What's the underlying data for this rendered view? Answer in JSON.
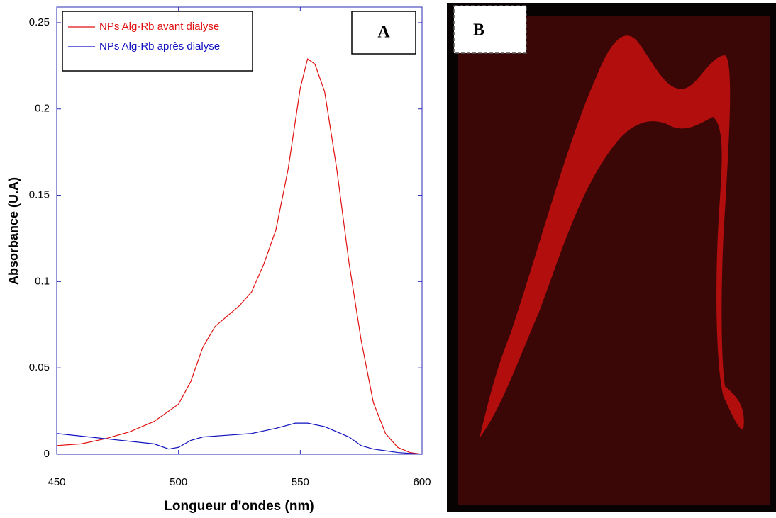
{
  "chart_data": {
    "type": "line",
    "panel_label": "A",
    "x_label": "Longueur d'ondes (nm)",
    "y_label": "Absorbance (U.A)",
    "xlim": [
      450,
      600
    ],
    "xticks": [
      450,
      500,
      550,
      600
    ],
    "ylim": [
      0,
      0.259
    ],
    "yticks": [
      0,
      0.05,
      0.1,
      0.15,
      0.2,
      0.25
    ],
    "legend": "upper left",
    "series": [
      {
        "name": "NPs  Alg-Rb avant dialyse",
        "color": "#e01010",
        "x": [
          450,
          460,
          470,
          480,
          490,
          500,
          505,
          510,
          515,
          520,
          525,
          530,
          535,
          540,
          545,
          550,
          553,
          556,
          560,
          565,
          570,
          575,
          580,
          585,
          590,
          595,
          600
        ],
        "values": [
          0.005,
          0.006,
          0.009,
          0.013,
          0.019,
          0.029,
          0.042,
          0.062,
          0.074,
          0.08,
          0.086,
          0.094,
          0.11,
          0.13,
          0.165,
          0.212,
          0.229,
          0.226,
          0.21,
          0.165,
          0.111,
          0.066,
          0.03,
          0.012,
          0.004,
          0.001,
          0
        ]
      },
      {
        "name": "NPs Alg-Rb après dialyse",
        "color": "#1010c0",
        "x": [
          450,
          470,
          490,
          496,
          500,
          505,
          510,
          520,
          530,
          540,
          548,
          553,
          560,
          570,
          575,
          580,
          590,
          600
        ],
        "values": [
          0.012,
          0.009,
          0.006,
          0.003,
          0.004,
          0.008,
          0.01,
          0.011,
          0.012,
          0.015,
          0.018,
          0.018,
          0.016,
          0.01,
          0.005,
          0.003,
          0.001,
          0
        ]
      }
    ]
  },
  "image_panel": {
    "label": "B"
  }
}
